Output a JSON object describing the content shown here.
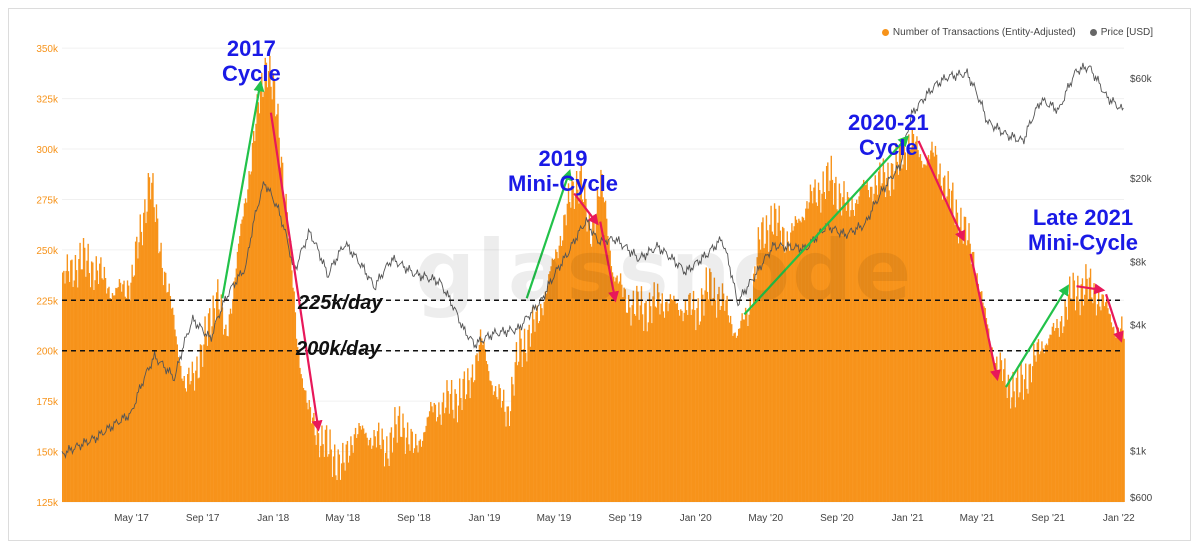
{
  "legend": {
    "transactions": "Number of Transactions (Entity-Adjusted)",
    "price": "Price [USD]"
  },
  "watermark": "glassnode",
  "annotations": {
    "cycle_2017_line1": "2017",
    "cycle_2017_line2": "Cycle",
    "cycle_2019_line1": "2019",
    "cycle_2019_line2": "Mini-Cycle",
    "cycle_2020_line1": "2020-21",
    "cycle_2020_line2": "Cycle",
    "cycle_late2021_line1": "Late 2021",
    "cycle_late2021_line2": "Mini-Cycle"
  },
  "levels": {
    "level_225": "225k/day",
    "level_200": "200k/day"
  },
  "colors": {
    "bars": "#f7931a",
    "price_line": "#555555",
    "up_arrow": "#22c24a",
    "down_arrow": "#e8185a",
    "annotation_text": "#1a1ae6"
  },
  "chart_data": {
    "type": "bar",
    "x_range": [
      "2017-01-01",
      "2022-01-10"
    ],
    "x_ticks": [
      "May '17",
      "Sep '17",
      "Jan '18",
      "May '18",
      "Sep '18",
      "Jan '19",
      "May '19",
      "Sep '19",
      "Jan '20",
      "May '20",
      "Sep '20",
      "Jan '21",
      "May '21",
      "Sep '21",
      "Jan '22"
    ],
    "y_left": {
      "label": "",
      "ylim": [
        125000,
        360000
      ],
      "ticks": [
        "125k",
        "150k",
        "175k",
        "200k",
        "225k",
        "250k",
        "275k",
        "300k",
        "325k",
        "350k"
      ],
      "tick_values": [
        125000,
        150000,
        175000,
        200000,
        225000,
        250000,
        275000,
        300000,
        325000,
        350000
      ]
    },
    "y_right": {
      "label": "",
      "scale": "log",
      "ticks": [
        "$600",
        "$1k",
        "$4k",
        "$8k",
        "$20k",
        "$60k"
      ],
      "tick_values": [
        600,
        1000,
        4000,
        8000,
        20000,
        60000
      ]
    },
    "reference_lines": [
      225000,
      200000
    ],
    "series": [
      {
        "name": "Number of Transactions (Entity-Adjusted)",
        "axis": "left",
        "points": [
          [
            "2017-01-01",
            235000
          ],
          [
            "2017-02-01",
            245000
          ],
          [
            "2017-03-01",
            240000
          ],
          [
            "2017-04-01",
            228000
          ],
          [
            "2017-05-01",
            235000
          ],
          [
            "2017-06-01",
            285000
          ],
          [
            "2017-06-25",
            240000
          ],
          [
            "2017-07-15",
            210000
          ],
          [
            "2017-08-01",
            180000
          ],
          [
            "2017-09-01",
            200000
          ],
          [
            "2017-09-25",
            230000
          ],
          [
            "2017-10-10",
            205000
          ],
          [
            "2017-11-01",
            250000
          ],
          [
            "2017-11-20",
            290000
          ],
          [
            "2017-12-05",
            320000
          ],
          [
            "2017-12-20",
            345000
          ],
          [
            "2018-01-05",
            320000
          ],
          [
            "2018-01-25",
            265000
          ],
          [
            "2018-02-10",
            205000
          ],
          [
            "2018-03-01",
            170000
          ],
          [
            "2018-03-25",
            155000
          ],
          [
            "2018-04-15",
            148000
          ],
          [
            "2018-05-01",
            142000
          ],
          [
            "2018-05-20",
            160000
          ],
          [
            "2018-06-15",
            158000
          ],
          [
            "2018-07-15",
            152000
          ],
          [
            "2018-08-10",
            165000
          ],
          [
            "2018-09-01",
            150000
          ],
          [
            "2018-10-01",
            170000
          ],
          [
            "2018-11-01",
            175000
          ],
          [
            "2018-12-01",
            180000
          ],
          [
            "2018-12-25",
            205000
          ],
          [
            "2019-01-20",
            178000
          ],
          [
            "2019-02-10",
            170000
          ],
          [
            "2019-03-01",
            200000
          ],
          [
            "2019-04-01",
            215000
          ],
          [
            "2019-05-01",
            245000
          ],
          [
            "2019-05-25",
            272000
          ],
          [
            "2019-06-15",
            288000
          ],
          [
            "2019-07-01",
            255000
          ],
          [
            "2019-07-20",
            285000
          ],
          [
            "2019-08-10",
            240000
          ],
          [
            "2019-09-01",
            225000
          ],
          [
            "2019-10-01",
            220000
          ],
          [
            "2019-11-01",
            225000
          ],
          [
            "2019-12-01",
            222000
          ],
          [
            "2020-01-01",
            220000
          ],
          [
            "2020-01-25",
            232000
          ],
          [
            "2020-02-15",
            225000
          ],
          [
            "2020-03-12",
            208000
          ],
          [
            "2020-04-01",
            220000
          ],
          [
            "2020-04-20",
            255000
          ],
          [
            "2020-05-10",
            265000
          ],
          [
            "2020-06-10",
            255000
          ],
          [
            "2020-07-01",
            268000
          ],
          [
            "2020-07-25",
            278000
          ],
          [
            "2020-08-20",
            285000
          ],
          [
            "2020-09-20",
            270000
          ],
          [
            "2020-10-15",
            280000
          ],
          [
            "2020-11-10",
            283000
          ],
          [
            "2020-12-10",
            290000
          ],
          [
            "2021-01-05",
            305000
          ],
          [
            "2021-01-25",
            295000
          ],
          [
            "2021-02-15",
            297000
          ],
          [
            "2021-03-10",
            278000
          ],
          [
            "2021-04-05",
            262000
          ],
          [
            "2021-04-25",
            245000
          ],
          [
            "2021-05-15",
            215000
          ],
          [
            "2021-06-01",
            195000
          ],
          [
            "2021-06-20",
            185000
          ],
          [
            "2021-07-10",
            180000
          ],
          [
            "2021-08-01",
            192000
          ],
          [
            "2021-08-25",
            205000
          ],
          [
            "2021-09-15",
            210000
          ],
          [
            "2021-10-10",
            228000
          ],
          [
            "2021-11-05",
            232000
          ],
          [
            "2021-12-01",
            225000
          ],
          [
            "2021-12-25",
            212000
          ],
          [
            "2022-01-08",
            208000
          ]
        ]
      },
      {
        "name": "Price [USD]",
        "axis": "right",
        "points": [
          [
            "2017-01-01",
            960
          ],
          [
            "2017-03-01",
            1150
          ],
          [
            "2017-05-01",
            1500
          ],
          [
            "2017-06-10",
            2800
          ],
          [
            "2017-07-15",
            2200
          ],
          [
            "2017-08-15",
            4200
          ],
          [
            "2017-09-15",
            3400
          ],
          [
            "2017-10-15",
            5600
          ],
          [
            "2017-11-15",
            7500
          ],
          [
            "2017-12-17",
            19000
          ],
          [
            "2018-01-10",
            14000
          ],
          [
            "2018-02-06",
            7000
          ],
          [
            "2018-03-05",
            11000
          ],
          [
            "2018-04-05",
            6800
          ],
          [
            "2018-05-05",
            9700
          ],
          [
            "2018-06-25",
            6000
          ],
          [
            "2018-07-25",
            8200
          ],
          [
            "2018-09-01",
            7000
          ],
          [
            "2018-10-15",
            6400
          ],
          [
            "2018-11-25",
            3800
          ],
          [
            "2018-12-15",
            3200
          ],
          [
            "2019-01-15",
            3600
          ],
          [
            "2019-03-01",
            3800
          ],
          [
            "2019-04-10",
            5200
          ],
          [
            "2019-05-25",
            8700
          ],
          [
            "2019-06-26",
            12500
          ],
          [
            "2019-07-15",
            10000
          ],
          [
            "2019-08-15",
            10200
          ],
          [
            "2019-09-25",
            8200
          ],
          [
            "2019-10-27",
            9400
          ],
          [
            "2019-12-15",
            7100
          ],
          [
            "2020-01-20",
            8600
          ],
          [
            "2020-02-15",
            10200
          ],
          [
            "2020-03-13",
            5000
          ],
          [
            "2020-04-15",
            7000
          ],
          [
            "2020-05-15",
            9500
          ],
          [
            "2020-07-10",
            9200
          ],
          [
            "2020-08-15",
            11800
          ],
          [
            "2020-09-15",
            10700
          ],
          [
            "2020-10-20",
            12000
          ],
          [
            "2020-11-25",
            18500
          ],
          [
            "2020-12-20",
            23000
          ],
          [
            "2021-01-08",
            40000
          ],
          [
            "2021-02-20",
            56000
          ],
          [
            "2021-03-13",
            61000
          ],
          [
            "2021-04-14",
            63000
          ],
          [
            "2021-05-19",
            37000
          ],
          [
            "2021-06-22",
            32000
          ],
          [
            "2021-07-20",
            30000
          ],
          [
            "2021-08-20",
            47000
          ],
          [
            "2021-09-20",
            42000
          ],
          [
            "2021-10-20",
            65000
          ],
          [
            "2021-11-10",
            68000
          ],
          [
            "2021-12-10",
            49000
          ],
          [
            "2022-01-08",
            42000
          ]
        ]
      }
    ]
  }
}
